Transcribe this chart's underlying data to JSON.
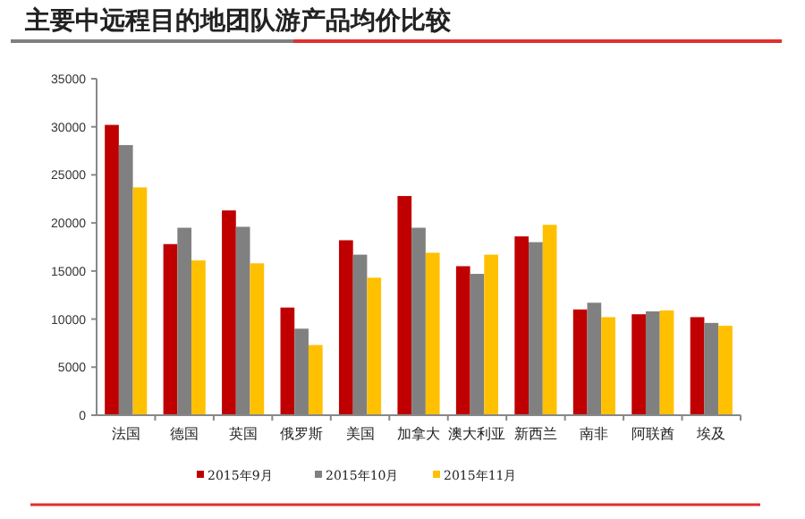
{
  "chart_data": {
    "type": "bar",
    "title": "主要中远程目的地团队游产品均价比较",
    "categories": [
      "法国",
      "德国",
      "英国",
      "俄罗斯",
      "美国",
      "加拿大",
      "澳大利亚",
      "新西兰",
      "南非",
      "阿联酋",
      "埃及"
    ],
    "series": [
      {
        "name": "2015年9月",
        "color": "#c00000",
        "values": [
          30200,
          17800,
          21300,
          11200,
          18200,
          22800,
          15500,
          18600,
          11000,
          10500,
          10200
        ]
      },
      {
        "name": "2015年10月",
        "color": "#808080",
        "values": [
          28100,
          19500,
          19600,
          9000,
          16700,
          19500,
          14700,
          18000,
          11700,
          10800,
          9600
        ]
      },
      {
        "name": "2015年11月",
        "color": "#ffc000",
        "values": [
          23700,
          16100,
          15800,
          7300,
          14300,
          16900,
          16700,
          19800,
          10200,
          10900,
          9300
        ]
      }
    ],
    "ylim": [
      0,
      35000
    ],
    "yticks": [
      0,
      5000,
      10000,
      15000,
      20000,
      25000,
      30000,
      35000
    ],
    "grid": false,
    "legend": "bottom"
  }
}
